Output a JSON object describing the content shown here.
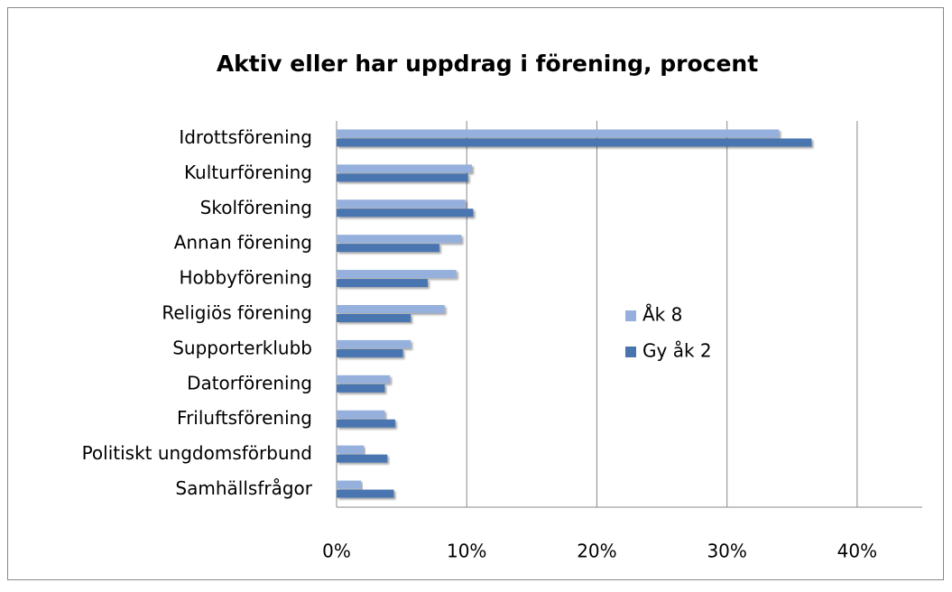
{
  "chart_data": {
    "type": "barh",
    "title": "Aktiv eller har uppdrag i förening, procent",
    "categories": [
      "Idrottsförening",
      "Kulturförening",
      "Skolförening",
      "Annan förening",
      "Hobbyförening",
      "Religiös förening",
      "Supporterklubb",
      "Datorförening",
      "Friluftsförening",
      "Politiskt ungdomsförbund",
      "Samhällsfrågor"
    ],
    "series": [
      {
        "name": "Åk 8",
        "color": "#95b0dc",
        "values": [
          34.0,
          10.4,
          9.9,
          9.6,
          9.2,
          8.3,
          5.7,
          4.1,
          3.7,
          2.1,
          1.9
        ]
      },
      {
        "name": "Gy åk 2",
        "color": "#4a74b0",
        "values": [
          36.5,
          10.1,
          10.5,
          7.9,
          7.0,
          5.7,
          5.1,
          3.7,
          4.5,
          3.9,
          4.4
        ]
      }
    ],
    "xlim": [
      0,
      45
    ],
    "xticks": [
      {
        "value": 0,
        "label": "0%"
      },
      {
        "value": 10,
        "label": "10%"
      },
      {
        "value": 20,
        "label": "20%"
      },
      {
        "value": 30,
        "label": "30%"
      },
      {
        "value": 40,
        "label": "40%"
      }
    ],
    "grid": true,
    "legend": "right"
  }
}
